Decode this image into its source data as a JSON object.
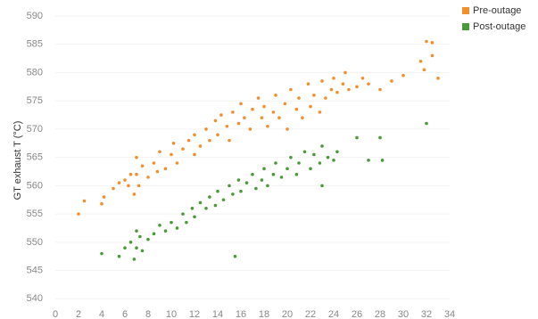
{
  "chart_data": {
    "type": "scatter",
    "y_label": "GT exhaust T (°C)",
    "xlim": [
      0,
      34
    ],
    "ylim": [
      538,
      590
    ],
    "xticks": [
      0,
      2,
      4,
      6,
      8,
      10,
      12,
      14,
      16,
      18,
      20,
      22,
      24,
      26,
      28,
      30,
      32,
      34
    ],
    "yticks": [
      540,
      545,
      550,
      555,
      560,
      565,
      570,
      575,
      580,
      585,
      590
    ],
    "grid": true,
    "legend": "top-right",
    "series": [
      {
        "name": "Pre-outage",
        "color": "#f28e2b",
        "x": [
          2,
          2.5,
          4,
          4.2,
          5,
          5.5,
          6,
          6.3,
          6.5,
          6.8,
          7,
          7,
          7.2,
          7.5,
          8,
          8.5,
          8.8,
          9,
          9.5,
          10,
          10.2,
          10.5,
          11,
          11.5,
          12,
          12,
          12.5,
          13,
          13.3,
          13.8,
          14,
          14.3,
          14.8,
          15,
          15.3,
          15.8,
          16,
          16.3,
          16.8,
          17,
          17.5,
          17.8,
          18,
          18.3,
          18.8,
          19,
          19.3,
          19.8,
          20,
          20.3,
          20.8,
          21,
          21.3,
          21.8,
          22,
          22.3,
          22.8,
          23,
          23.3,
          23.8,
          24,
          24.3,
          24.8,
          25,
          25.3,
          26,
          26.5,
          27,
          28,
          29,
          30,
          31.5,
          31.8,
          32,
          32.5,
          32.5,
          33
        ],
        "values": [
          555,
          557.3,
          556.8,
          558,
          559.5,
          560.5,
          561,
          560,
          562,
          558.5,
          565,
          562,
          560,
          563.5,
          561.5,
          564,
          562.5,
          566,
          563,
          565.5,
          567.5,
          564,
          566.5,
          568,
          565.5,
          569,
          567,
          570,
          568,
          571.5,
          569,
          572.5,
          570.5,
          568,
          573,
          571,
          574.5,
          572,
          570,
          573.5,
          575.5,
          572,
          574,
          570.5,
          573,
          576,
          572,
          574.5,
          570,
          577,
          573.5,
          575.5,
          572,
          578,
          574,
          576,
          573,
          578.5,
          575.5,
          577,
          579,
          576.5,
          578,
          580,
          577,
          577.5,
          579,
          578,
          577,
          578.5,
          579.5,
          582,
          580.5,
          585.5,
          585.3,
          583,
          579
        ]
      },
      {
        "name": "Post-outage",
        "color": "#4a9a3a",
        "x": [
          4,
          5.5,
          6,
          6.5,
          6.8,
          7,
          7,
          7.3,
          7.5,
          8,
          8.5,
          9,
          9.5,
          10,
          10.5,
          11,
          11.3,
          11.8,
          12,
          12.5,
          13,
          13.3,
          13.8,
          14,
          14.5,
          15,
          15.3,
          15.5,
          15.8,
          16,
          16.5,
          17,
          17.3,
          17.8,
          18,
          18.3,
          18.8,
          19,
          19.5,
          20,
          20.3,
          20.8,
          21,
          21.5,
          22,
          22.3,
          22.8,
          23,
          23,
          23.5,
          24,
          24.3,
          26,
          27,
          28,
          28.2,
          32
        ],
        "values": [
          548,
          547.5,
          549,
          550,
          547,
          552,
          549,
          551,
          548.5,
          550.5,
          551.5,
          553,
          552,
          553.5,
          552.5,
          555,
          553.5,
          556,
          554.5,
          557,
          556,
          558,
          556.5,
          559,
          557.5,
          560,
          558.5,
          547.5,
          561,
          559,
          560.5,
          562,
          559.5,
          561,
          563,
          560,
          562,
          564,
          561.5,
          563,
          565,
          562,
          564,
          566,
          563,
          565.5,
          564,
          567,
          560,
          565,
          564.5,
          566,
          568.5,
          564.5,
          568.5,
          564.5,
          571
        ]
      }
    ]
  }
}
